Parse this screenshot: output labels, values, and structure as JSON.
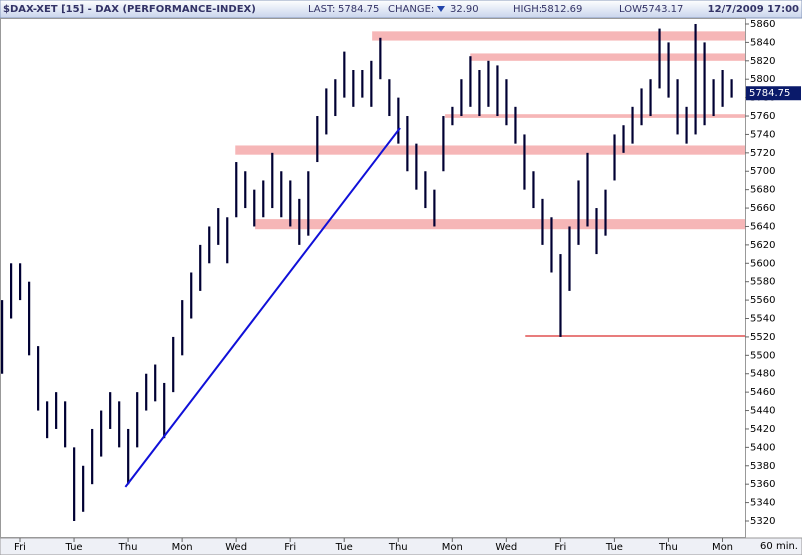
{
  "chart_data": {
    "type": "range-bar",
    "title": "$DAX-XET [15] - DAX (PERFORMANCE-INDEX)",
    "last_label": "LAST:",
    "last": 5784.75,
    "change_label": "CHANGE:",
    "change": {
      "value": 32.9,
      "label": "32.90"
    },
    "high_label": "HIGH:",
    "high": 5812.69,
    "low_label": "LOW:",
    "low": 5743.17,
    "date": "12/7/2009 17:00",
    "x_unit": "60 min.",
    "color": "#000033",
    "xlim": [
      0,
      82.5
    ],
    "ylim": [
      5305,
      5884
    ],
    "xticks": [
      {
        "value": 2,
        "label": "Fri"
      },
      {
        "value": 8,
        "label": "Tue"
      },
      {
        "value": 14,
        "label": "Thu"
      },
      {
        "value": 20,
        "label": "Mon"
      },
      {
        "value": 26,
        "label": "Wed"
      },
      {
        "value": 32,
        "label": "Fri"
      },
      {
        "value": 38,
        "label": "Tue"
      },
      {
        "value": 44,
        "label": "Thu"
      },
      {
        "value": 50,
        "label": "Mon"
      },
      {
        "value": 56,
        "label": "Wed"
      },
      {
        "value": 62,
        "label": "Fri"
      },
      {
        "value": 68,
        "label": "Tue"
      },
      {
        "value": 74,
        "label": "Thu"
      },
      {
        "value": 80,
        "label": "Mon"
      }
    ],
    "yticks": [
      5320,
      5340,
      5360,
      5380,
      5400,
      5420,
      5440,
      5460,
      5480,
      5500,
      5520,
      5540,
      5560,
      5580,
      5600,
      5620,
      5640,
      5660,
      5680,
      5700,
      5720,
      5740,
      5760,
      5780,
      5800,
      5820,
      5840,
      5860
    ],
    "low_values": [
      5480,
      5540,
      5560,
      5500,
      5440,
      5410,
      5420,
      5400,
      5320,
      5330,
      5360,
      5390,
      5420,
      5400,
      5360,
      5400,
      5440,
      5450,
      5410,
      5460,
      5500,
      5540,
      5570,
      5600,
      5620,
      5600,
      5650,
      5660,
      5640,
      5650,
      5660,
      5650,
      5640,
      5620,
      5630,
      5710,
      5740,
      5760,
      5780,
      5770,
      5780,
      5770,
      5800,
      5760,
      5730,
      5700,
      5680,
      5660,
      5640,
      5700,
      5750,
      5760,
      5770,
      5760,
      5770,
      5760,
      5750,
      5730,
      5680,
      5660,
      5620,
      5590,
      5520,
      5570,
      5620,
      5640,
      5610,
      5630,
      5690,
      5720,
      5730,
      5750,
      5760,
      5790,
      5780,
      5740,
      5730,
      5740,
      5750,
      5760,
      5770,
      5780
    ],
    "high_values": [
      5560,
      5600,
      5600,
      5580,
      5510,
      5450,
      5460,
      5450,
      5400,
      5380,
      5420,
      5440,
      5460,
      5450,
      5420,
      5460,
      5480,
      5490,
      5470,
      5520,
      5560,
      5590,
      5620,
      5640,
      5660,
      5650,
      5710,
      5700,
      5680,
      5690,
      5720,
      5700,
      5690,
      5670,
      5700,
      5760,
      5790,
      5800,
      5830,
      5810,
      5810,
      5820,
      5845,
      5800,
      5780,
      5760,
      5730,
      5700,
      5680,
      5760,
      5770,
      5800,
      5825,
      5810,
      5820,
      5815,
      5800,
      5770,
      5740,
      5700,
      5670,
      5650,
      5610,
      5640,
      5690,
      5720,
      5660,
      5680,
      5740,
      5750,
      5770,
      5790,
      5800,
      5855,
      5840,
      5800,
      5770,
      5860,
      5840,
      5800,
      5810,
      5800
    ],
    "zone_color": "#f5a9aa",
    "zones": [
      {
        "x": [
          41.1,
          82.5
        ],
        "y": [
          5842,
          5852
        ]
      },
      {
        "x": [
          52,
          82.5
        ],
        "y": [
          5820,
          5828
        ]
      },
      {
        "x": [
          49.2,
          82.5
        ],
        "y": [
          5758,
          5762
        ]
      },
      {
        "x": [
          25.9,
          82.5
        ],
        "y": [
          5718,
          5728
        ]
      },
      {
        "x": [
          28.1,
          82.5
        ],
        "y": [
          5637,
          5648
        ]
      }
    ],
    "support_line": {
      "x": [
        58.1,
        82.5
      ],
      "y": 5521,
      "color": "#e05050"
    },
    "trend_line": {
      "x": [
        13.7,
        44.2
      ],
      "y": [
        5357,
        5747
      ],
      "color": "#1010d8"
    }
  }
}
